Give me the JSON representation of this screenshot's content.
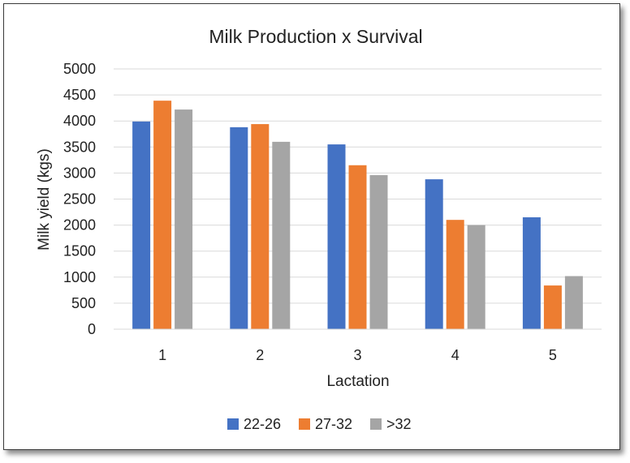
{
  "chart_data": {
    "type": "bar",
    "title": "Milk Production x Survival",
    "xlabel": "Lactation",
    "ylabel": "Milk yield (kgs)",
    "categories": [
      "1",
      "2",
      "3",
      "4",
      "5"
    ],
    "ylim": [
      0,
      5000
    ],
    "yticks": [
      0,
      500,
      1000,
      1500,
      2000,
      2500,
      3000,
      3500,
      4000,
      4500,
      5000
    ],
    "grid": true,
    "legend_position": "bottom",
    "series": [
      {
        "name": "22-26",
        "color": "#4472C4",
        "values": [
          3990,
          3880,
          3550,
          2880,
          2150
        ]
      },
      {
        "name": "27-32",
        "color": "#ED7D31",
        "values": [
          4390,
          3940,
          3150,
          2100,
          840
        ]
      },
      {
        "name": ">32",
        "color": "#A5A5A5",
        "values": [
          4220,
          3600,
          2960,
          2000,
          1020
        ]
      }
    ]
  }
}
